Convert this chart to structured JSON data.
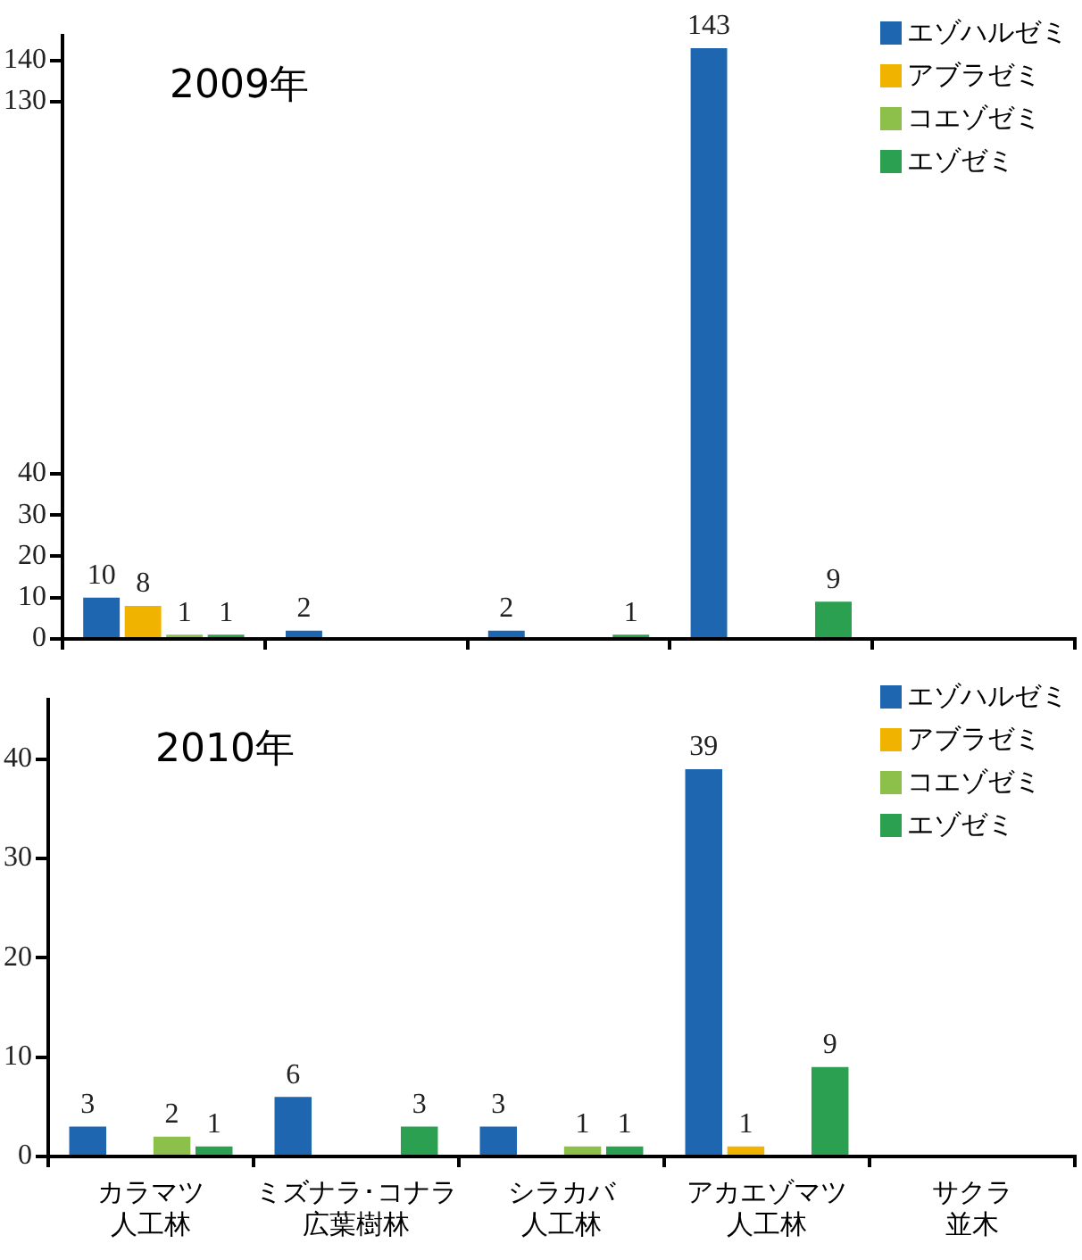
{
  "chart_data": [
    {
      "type": "bar",
      "title": "2009年",
      "categories": [
        null,
        null,
        null,
        null,
        null
      ],
      "series": [
        {
          "name": "エゾハルゼミ",
          "color": "#1f66b0",
          "values": [
            10,
            2,
            2,
            143,
            null
          ]
        },
        {
          "name": "アブラゼミ",
          "color": "#f0b400",
          "values": [
            8,
            null,
            null,
            null,
            null
          ]
        },
        {
          "name": "コエゾゼミ",
          "color": "#8cc04a",
          "values": [
            1,
            null,
            null,
            null,
            null
          ]
        },
        {
          "name": "エゾゼミ",
          "color": "#2aa050",
          "values": [
            1,
            null,
            1,
            9,
            null
          ]
        }
      ],
      "ylim": [
        0,
        146
      ],
      "yticks": [
        0,
        10,
        20,
        30,
        40,
        130,
        140
      ],
      "data_labels": true,
      "legend": "top right",
      "tick_labels": "y"
    },
    {
      "type": "bar",
      "title": "2010年",
      "categories": [
        "カラマツ人工林",
        "ミズナラ･コナラ広葉樹林",
        "シラカバ人工林",
        "アカエゾマツ人工林",
        "サクラ並木"
      ],
      "series": [
        {
          "name": "エゾハルゼミ",
          "color": "#1f66b0",
          "values": [
            3,
            6,
            3,
            39,
            null
          ]
        },
        {
          "name": "アブラゼミ",
          "color": "#f0b400",
          "values": [
            null,
            null,
            null,
            1,
            null
          ]
        },
        {
          "name": "コエゾゼミ",
          "color": "#8cc04a",
          "values": [
            2,
            null,
            1,
            null,
            null
          ]
        },
        {
          "name": "エゾゼミ",
          "color": "#2aa050",
          "values": [
            1,
            3,
            1,
            9,
            null
          ]
        }
      ],
      "ylim": [
        0,
        46
      ],
      "yticks": [
        0,
        10,
        20,
        30,
        40
      ],
      "data_labels": true,
      "legend": "top right"
    }
  ]
}
